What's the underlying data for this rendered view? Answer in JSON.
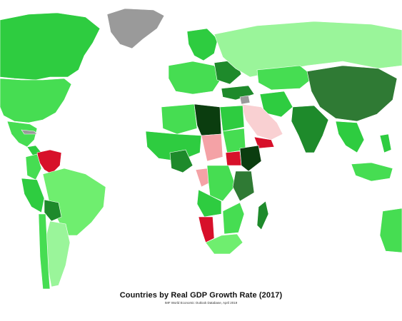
{
  "title": "Countries by Real GDP Growth Rate (2017)",
  "source": "IMF World Economic Outlook Database, April 2019",
  "colors": {
    "strong_growth": "#2ecc40",
    "moderate_growth": "#6fee6f",
    "high_growth": "#0b3d0f",
    "no_data": "#9a9a9a",
    "negative_growth": "#d7102a",
    "slight_decline": "#f4a2a6"
  }
}
